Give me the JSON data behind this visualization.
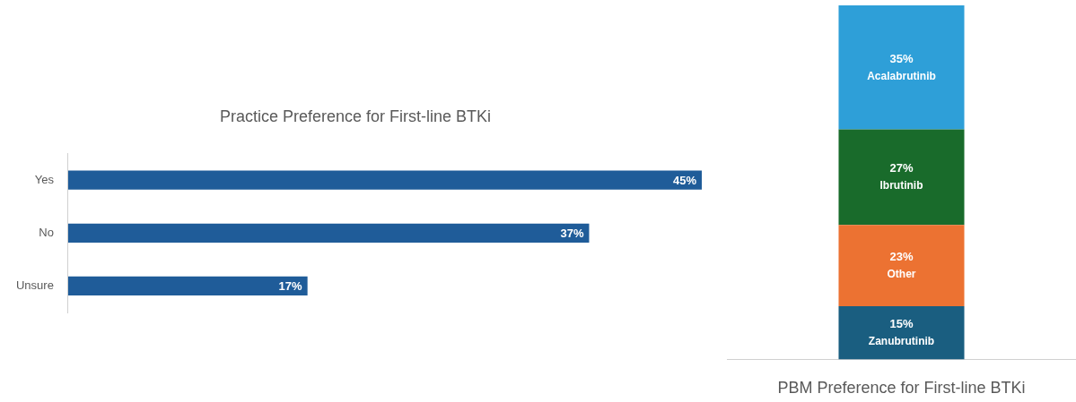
{
  "chart_data": [
    {
      "type": "bar",
      "orientation": "horizontal",
      "title": "Practice Preference for First-line BTKi",
      "categories": [
        "Yes",
        "No",
        "Unsure"
      ],
      "values": [
        45,
        37,
        17
      ],
      "value_labels": [
        "45%",
        "37%",
        "17%"
      ],
      "color": "#1f5c99"
    },
    {
      "type": "bar",
      "stacked": true,
      "title": "PBM Preference for First-line BTKi",
      "categories": [
        null
      ],
      "series": [
        {
          "name": "Zanubrutinib",
          "color": "#1a5e80",
          "values": [
            15
          ],
          "value_labels": [
            "15%"
          ]
        },
        {
          "name": "Other",
          "color": "#ec7232",
          "values": [
            23
          ],
          "value_labels": [
            "23%"
          ]
        },
        {
          "name": "Ibrutinib",
          "color": "#196b2b",
          "values": [
            27
          ],
          "value_labels": [
            "27%"
          ]
        },
        {
          "name": "Acalabrutinib",
          "color": "#2e9fd8",
          "values": [
            35
          ],
          "value_labels": [
            "35%"
          ]
        }
      ]
    }
  ]
}
